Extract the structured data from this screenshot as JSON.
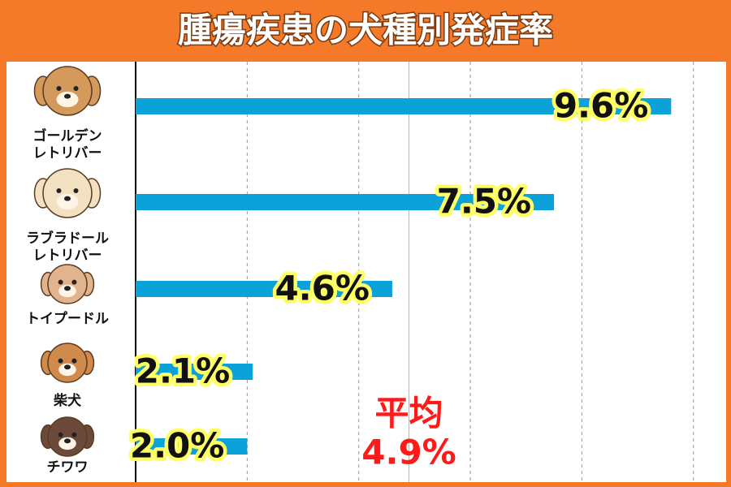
{
  "chart_data": {
    "type": "hbar",
    "title": "腫瘍疾患の犬種別発症率",
    "categories": [
      "ゴールデン\nレトリバー",
      "ラブラドール\nレトリバー",
      "トイプードル",
      "柴犬",
      "チワワ"
    ],
    "values": [
      9.6,
      7.5,
      4.6,
      2.1,
      2.0
    ],
    "value_labels": [
      "9.6%",
      "7.5%",
      "4.6%",
      "2.1%",
      "2.0%"
    ],
    "color": "#0aa2d8",
    "xlim": [
      0,
      10.6
    ],
    "xticks": [
      2,
      4,
      6,
      8,
      10
    ],
    "show_tick_labels": false,
    "grid": true,
    "average": {
      "label": "平均",
      "value": 4.9,
      "value_label": "4.9%",
      "color": "#ff1a1a"
    }
  }
}
